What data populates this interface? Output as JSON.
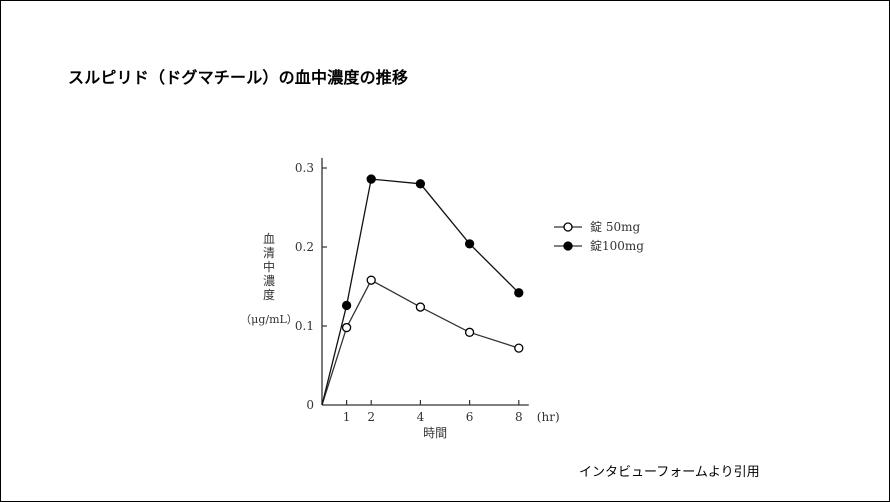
{
  "slide": {
    "title": "スルピリド（ドグマチール）の血中濃度の推移",
    "source_note": "インタビューフォームより引用"
  },
  "chart_data": {
    "type": "line",
    "ylabel": "血清中濃度",
    "ylabel_unit": "（μg/mL）",
    "xlabel": "時間",
    "x_unit": "(hr)",
    "xlim": [
      0,
      8
    ],
    "ylim": [
      0,
      0.3
    ],
    "x_ticks": [
      "1",
      "2",
      "4",
      "6",
      "8"
    ],
    "x_tick_values": [
      1,
      2,
      4,
      6,
      8
    ],
    "y_ticks": [
      "0",
      "0.1",
      "0.2",
      "0.3"
    ],
    "y_tick_values": [
      0,
      0.1,
      0.2,
      0.3
    ],
    "grid": false,
    "legend_position": "right",
    "series": [
      {
        "name": "錠 50mg",
        "marker": "open-circle",
        "color": "#333333",
        "x": [
          0,
          1,
          2,
          4,
          6,
          8
        ],
        "y": [
          0,
          0.098,
          0.158,
          0.124,
          0.092,
          0.072
        ]
      },
      {
        "name": "錠100mg",
        "marker": "filled-circle",
        "color": "#111111",
        "x": [
          0,
          1,
          2,
          4,
          6,
          8
        ],
        "y": [
          0,
          0.126,
          0.286,
          0.28,
          0.204,
          0.142
        ]
      }
    ]
  }
}
